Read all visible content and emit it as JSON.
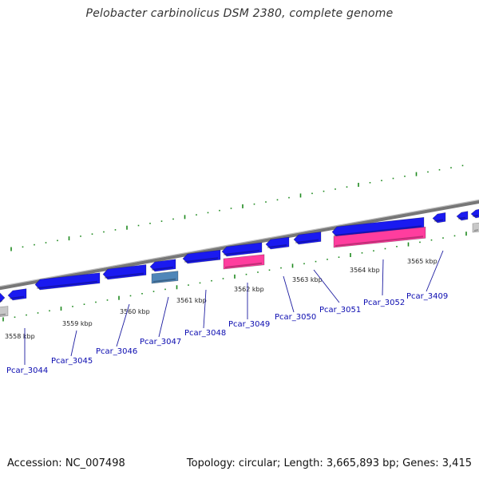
{
  "title": "Pelobacter carbinolicus DSM 2380, complete genome",
  "footer": {
    "accession": "Accession: NC_007498",
    "stats": "Topology: circular; Length: 3,665,893 bp; Genes: 3,415"
  },
  "colors": {
    "background": "#ffffff",
    "backbone": "#888888",
    "forward_gene": "#1a1af0",
    "reverse_gene": "#ff3d9e",
    "reverse_gene_alt": "#4f86b8",
    "partial_gene": "#c8c8c8",
    "tick": "#1f8a1f",
    "label_text": "#0b0bb0",
    "leader_line": "#1a1aa0"
  },
  "kbp_ticks": [
    "3558 kbp",
    "3559 kbp",
    "3560 kbp",
    "3561 kbp",
    "3562 kbp",
    "3563 kbp",
    "3564 kbp",
    "3565 kbp"
  ],
  "gene_labels": [
    "Pcar_3044",
    "Pcar_3045",
    "Pcar_3046",
    "Pcar_3047",
    "Pcar_3048",
    "Pcar_3049",
    "Pcar_3050",
    "Pcar_3051",
    "Pcar_3052",
    "Pcar_3409"
  ]
}
